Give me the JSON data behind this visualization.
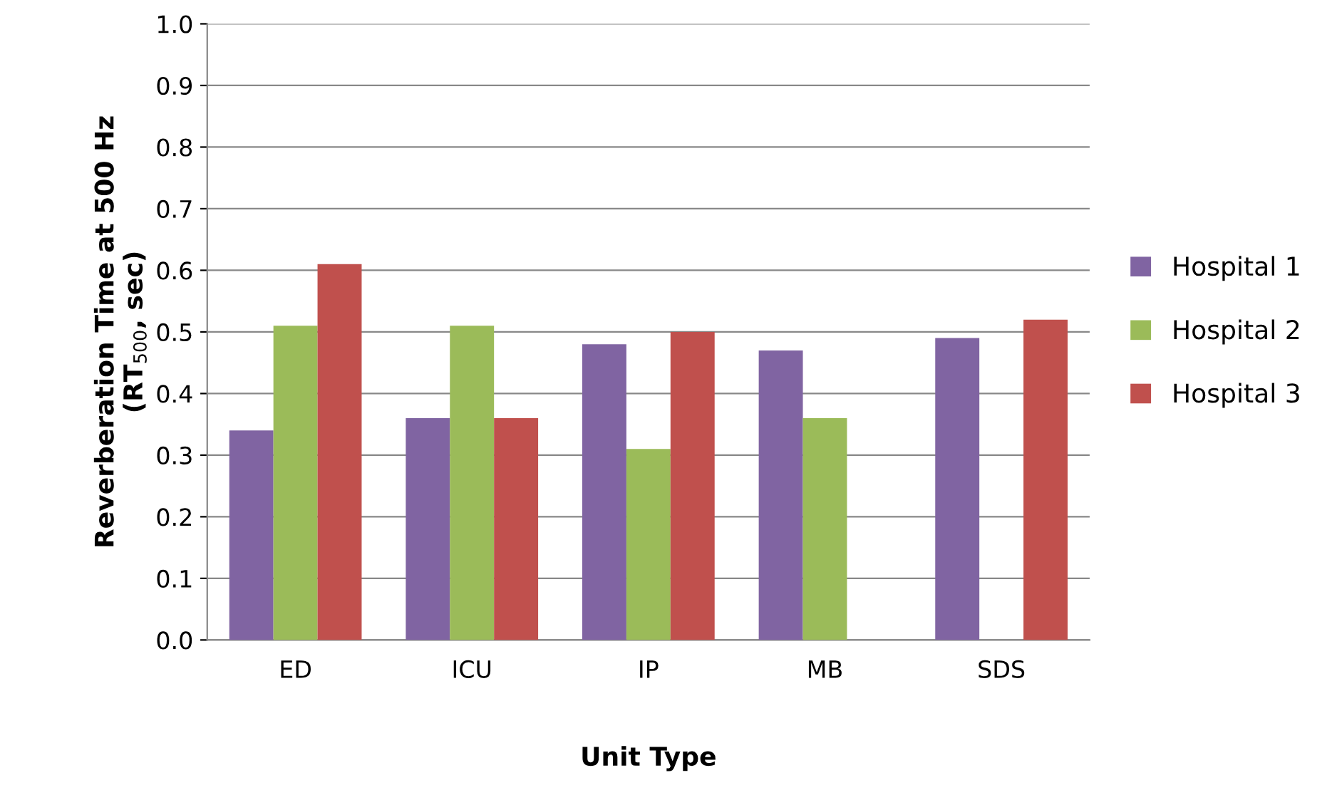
{
  "chart_data": {
    "type": "bar",
    "xlabel": "Unit Type",
    "ylabel": "Reverberation Time at 500 Hz\n(RT$_{500}$, sec)",
    "categories": [
      "ED",
      "ICU",
      "IP",
      "MB",
      "SDS"
    ],
    "series": [
      {
        "name": "Hospital 1",
        "color": "#8064a2",
        "values": [
          0.34,
          0.36,
          0.48,
          0.47,
          0.49
        ]
      },
      {
        "name": "Hospital 2",
        "color": "#9bbb59",
        "values": [
          0.51,
          0.51,
          0.31,
          0.36,
          null
        ]
      },
      {
        "name": "Hospital 3",
        "color": "#c0504d",
        "values": [
          0.61,
          0.36,
          0.5,
          null,
          0.52
        ]
      }
    ],
    "ylim": [
      0,
      1.0
    ],
    "yticks": [
      {
        "value": 0,
        "label": "0.0"
      },
      0.1,
      0.2,
      0.3,
      0.4,
      0.5,
      0.6,
      0.7,
      0.8,
      0.9,
      {
        "value": 1.0,
        "label": "1.0"
      }
    ],
    "grid": "y",
    "legend": "right"
  }
}
